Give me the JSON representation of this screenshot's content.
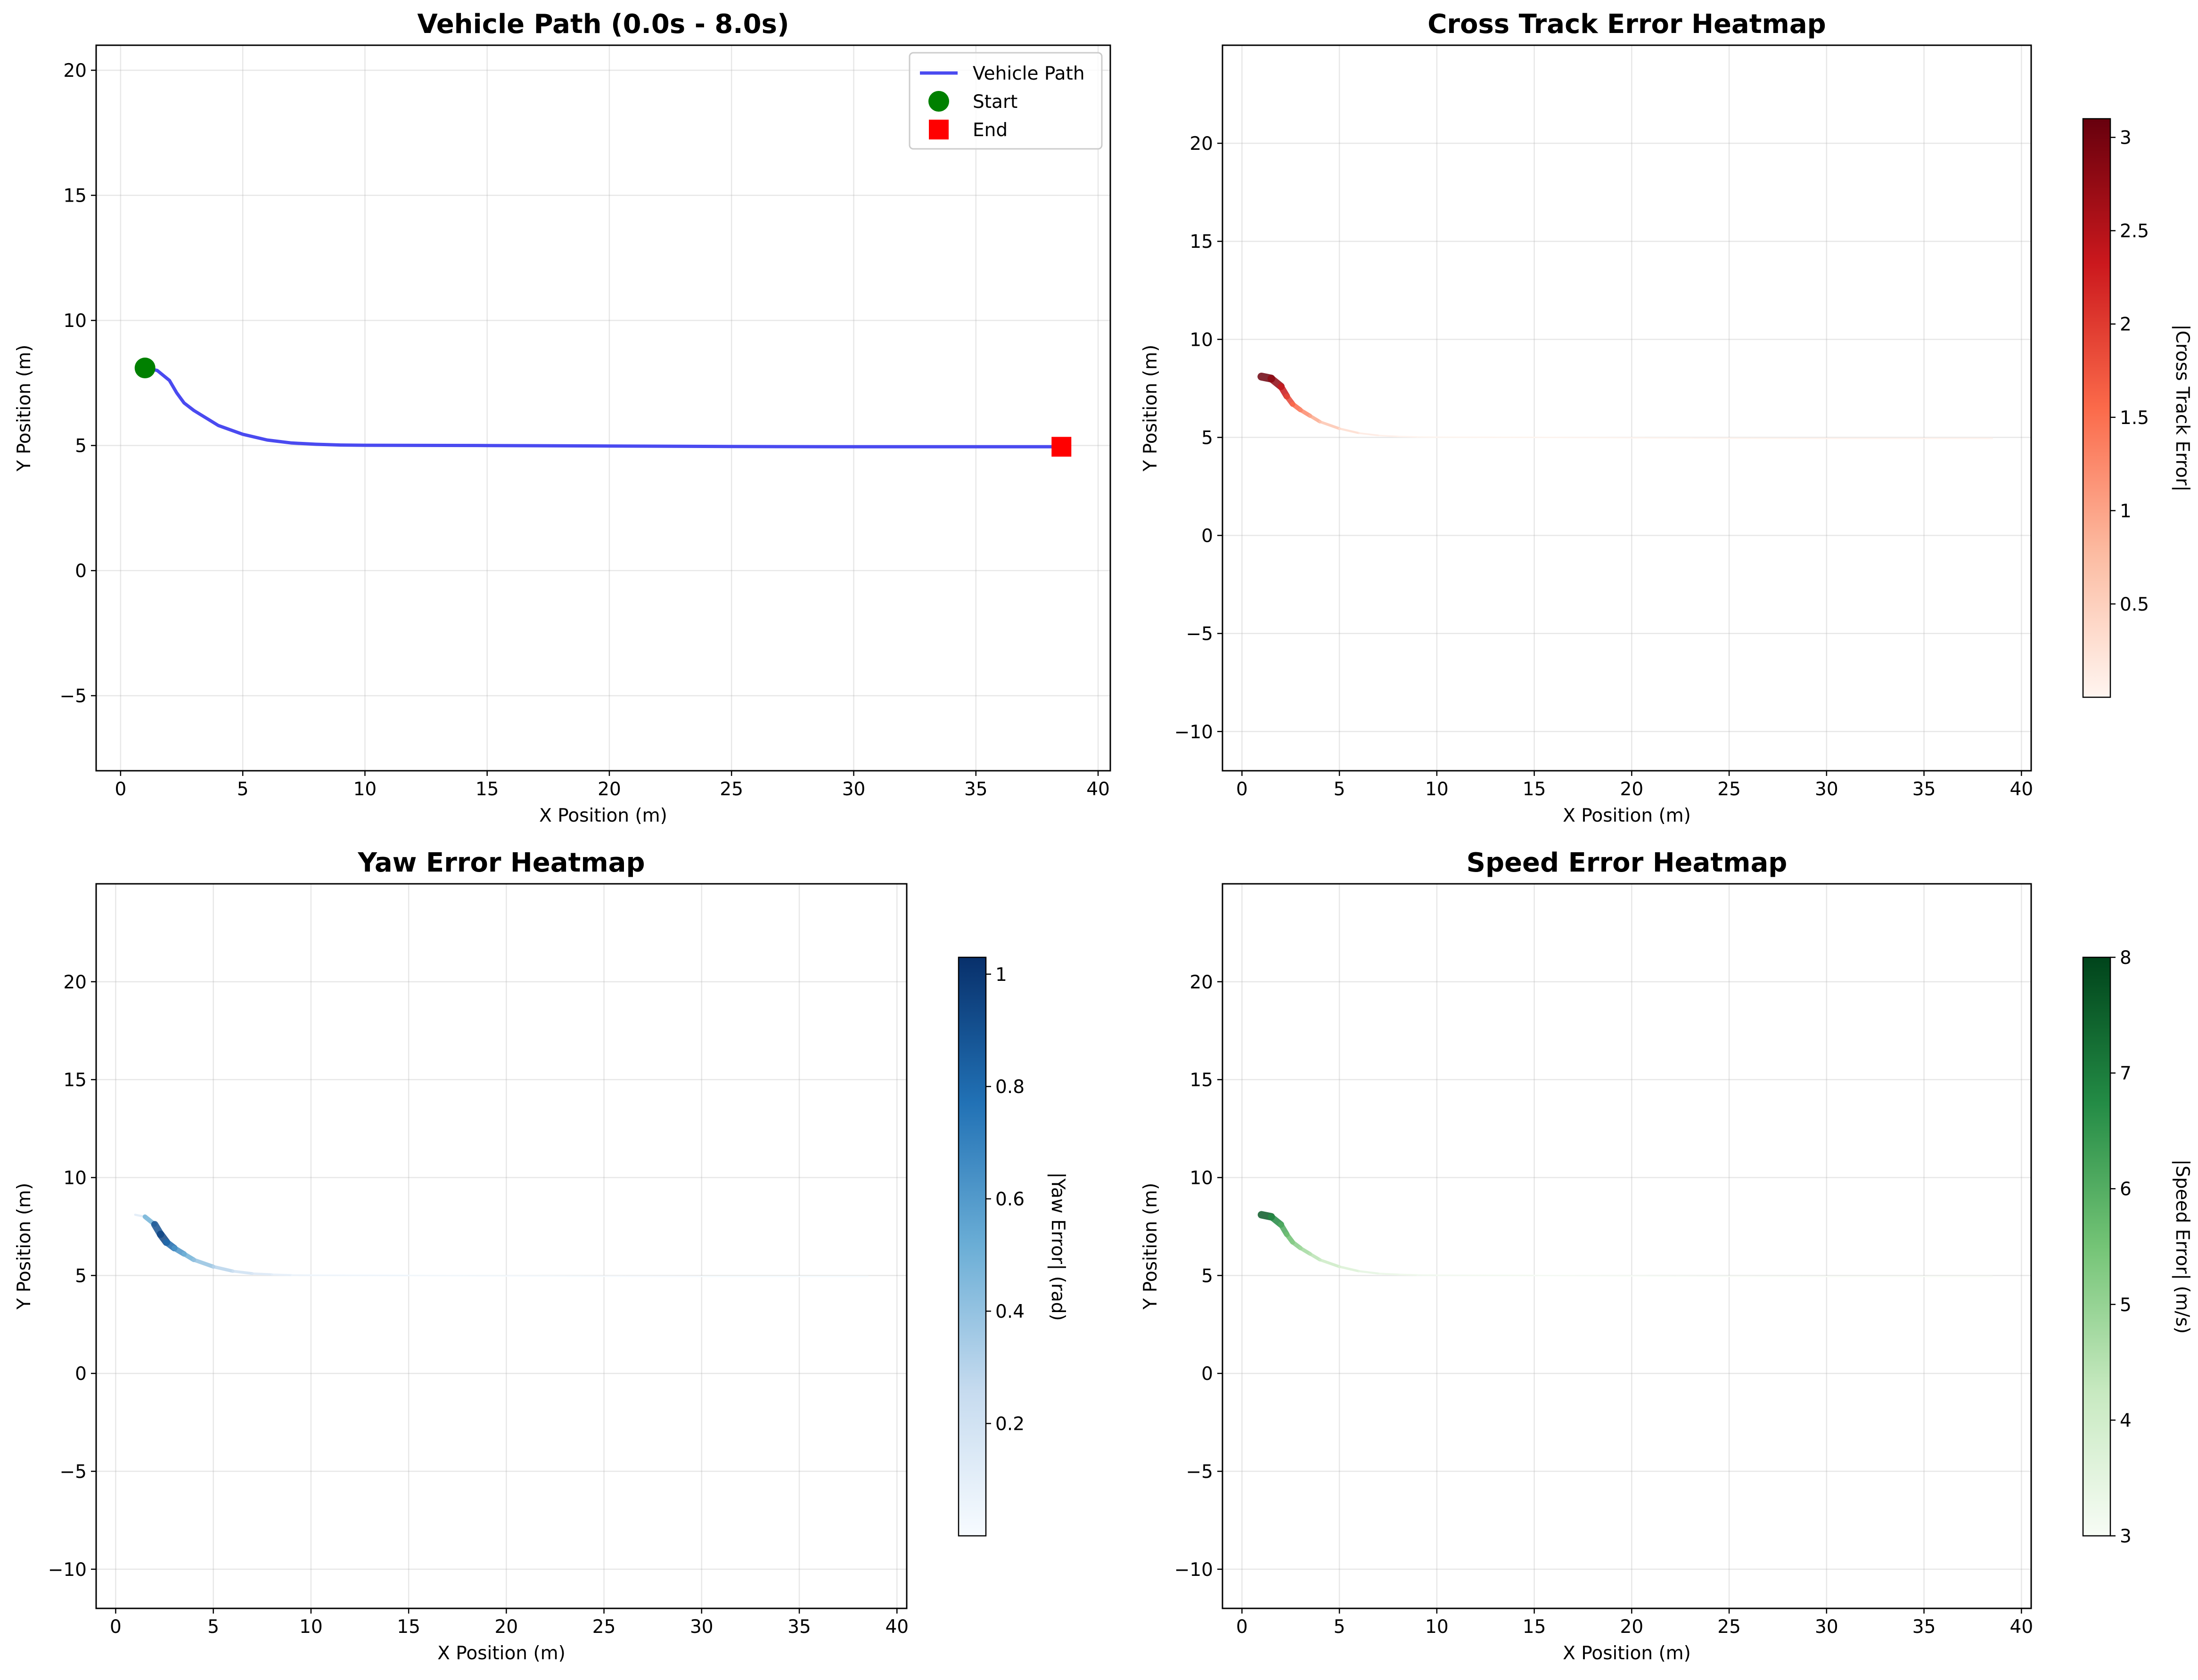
{
  "chart_data": [
    {
      "type": "line",
      "title": "Vehicle Path (0.0s - 8.0s)",
      "xlabel": "X Position (m)",
      "ylabel": "Y Position (m)",
      "xlim": [
        -1,
        40.5
      ],
      "ylim": [
        -8,
        21
      ],
      "xticks": [
        0,
        5,
        10,
        15,
        20,
        25,
        30,
        35,
        40
      ],
      "yticks": [
        -5,
        0,
        5,
        10,
        15,
        20
      ],
      "grid": true,
      "legend_position": "top-right",
      "series": [
        {
          "name": "Vehicle Path",
          "color": "#4a4af0",
          "x": [
            1.0,
            1.5,
            2.0,
            2.3,
            2.6,
            3.0,
            3.5,
            4.0,
            5.0,
            6.0,
            7.0,
            8.0,
            9.0,
            10.0,
            15.0,
            20.0,
            25.0,
            30.0,
            35.0,
            38.5
          ],
          "y": [
            8.1,
            8.0,
            7.6,
            7.1,
            6.7,
            6.4,
            6.1,
            5.8,
            5.45,
            5.22,
            5.1,
            5.05,
            5.02,
            5.01,
            5.0,
            4.98,
            4.96,
            4.95,
            4.95,
            4.95
          ]
        }
      ],
      "markers": [
        {
          "name": "Start",
          "x": 1.0,
          "y": 8.1,
          "shape": "circle",
          "color": "#008000"
        },
        {
          "name": "End",
          "x": 38.5,
          "y": 4.95,
          "shape": "square",
          "color": "#ff0000"
        }
      ]
    },
    {
      "type": "heatmap",
      "title": "Cross Track Error Heatmap",
      "xlabel": "X Position (m)",
      "ylabel": "Y Position (m)",
      "xlim": [
        -1,
        40.5
      ],
      "ylim": [
        -12,
        25
      ],
      "xticks": [
        0,
        5,
        10,
        15,
        20,
        25,
        30,
        35,
        40
      ],
      "yticks": [
        -10,
        -5,
        0,
        5,
        10,
        15,
        20
      ],
      "grid": true,
      "colormap": "Reds",
      "colorbar_label": "|Cross Track Error|",
      "colorbar_range": [
        0.0,
        3.1
      ],
      "colorbar_ticks": [
        0.5,
        1.0,
        1.5,
        2.0,
        2.5,
        3.0
      ],
      "x": [
        1.0,
        1.5,
        2.0,
        2.3,
        2.6,
        3.0,
        3.5,
        4.0,
        5.0,
        6.0,
        7.0,
        8.0,
        9.0,
        10.0,
        15.0,
        20.0,
        25.0,
        30.0,
        35.0,
        38.5
      ],
      "y": [
        8.1,
        8.0,
        7.6,
        7.1,
        6.7,
        6.4,
        6.1,
        5.8,
        5.45,
        5.22,
        5.1,
        5.05,
        5.02,
        5.01,
        5.0,
        4.98,
        4.96,
        4.95,
        4.95,
        4.95
      ],
      "values": [
        3.1,
        3.0,
        2.6,
        2.1,
        1.7,
        1.4,
        1.1,
        0.8,
        0.45,
        0.22,
        0.1,
        0.05,
        0.02,
        0.01,
        0.0,
        0.02,
        0.04,
        0.05,
        0.05,
        0.05
      ]
    },
    {
      "type": "heatmap",
      "title": "Yaw Error Heatmap",
      "xlabel": "X Position (m)",
      "ylabel": "Y Position (m)",
      "xlim": [
        -1,
        40.5
      ],
      "ylim": [
        -12,
        25
      ],
      "xticks": [
        0,
        5,
        10,
        15,
        20,
        25,
        30,
        35,
        40
      ],
      "yticks": [
        -10,
        -5,
        0,
        5,
        10,
        15,
        20
      ],
      "grid": true,
      "colormap": "Blues",
      "colorbar_label": "|Yaw Error| (rad)",
      "colorbar_range": [
        0.0,
        1.03
      ],
      "colorbar_ticks": [
        0.2,
        0.4,
        0.6,
        0.8,
        1.0
      ],
      "x": [
        1.0,
        1.5,
        2.0,
        2.3,
        2.6,
        3.0,
        3.5,
        4.0,
        5.0,
        6.0,
        7.0,
        8.0,
        9.0,
        10.0,
        15.0,
        20.0,
        25.0,
        30.0,
        35.0,
        38.5
      ],
      "y": [
        8.1,
        8.0,
        7.6,
        7.1,
        6.7,
        6.4,
        6.1,
        5.8,
        5.45,
        5.22,
        5.1,
        5.05,
        5.02,
        5.01,
        5.0,
        4.98,
        4.96,
        4.95,
        4.95,
        4.95
      ],
      "values": [
        0.05,
        0.2,
        0.8,
        1.0,
        0.9,
        0.7,
        0.55,
        0.45,
        0.35,
        0.25,
        0.18,
        0.12,
        0.08,
        0.05,
        0.03,
        0.02,
        0.02,
        0.01,
        0.01,
        0.01
      ]
    },
    {
      "type": "heatmap",
      "title": "Speed Error Heatmap",
      "xlabel": "X Position (m)",
      "ylabel": "Y Position (m)",
      "xlim": [
        -1,
        40.5
      ],
      "ylim": [
        -12,
        25
      ],
      "xticks": [
        0,
        5,
        10,
        15,
        20,
        25,
        30,
        35,
        40
      ],
      "yticks": [
        -10,
        -5,
        0,
        5,
        10,
        15,
        20
      ],
      "grid": true,
      "colormap": "Greens",
      "colorbar_label": "|Speed Error| (m/s)",
      "colorbar_range": [
        3.0,
        8.0
      ],
      "colorbar_ticks": [
        3,
        4,
        5,
        6,
        7,
        8
      ],
      "x": [
        1.0,
        1.5,
        2.0,
        2.3,
        2.6,
        3.0,
        3.5,
        4.0,
        5.0,
        6.0,
        7.0,
        8.0,
        9.0,
        10.0,
        15.0,
        20.0,
        25.0,
        30.0,
        35.0,
        38.5
      ],
      "y": [
        8.1,
        8.0,
        7.6,
        7.1,
        6.7,
        6.4,
        6.1,
        5.8,
        5.45,
        5.22,
        5.1,
        5.05,
        5.02,
        5.01,
        5.0,
        4.98,
        4.96,
        4.95,
        4.95,
        4.95
      ],
      "values": [
        8.0,
        7.2,
        6.4,
        5.8,
        5.4,
        5.0,
        4.6,
        4.3,
        3.9,
        3.6,
        3.4,
        3.3,
        3.2,
        3.15,
        3.05,
        3.02,
        3.01,
        3.0,
        3.0,
        3.0
      ]
    }
  ]
}
